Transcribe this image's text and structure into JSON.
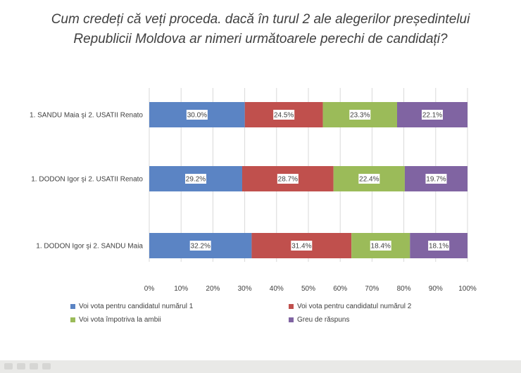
{
  "title_lines": [
    "Cum credeți că veți proceda. dacă în turul 2 ale alegerilor președintelui",
    "Republicii Moldova ar nimeri următoarele perechi de candidați?"
  ],
  "colors": {
    "series": [
      "#5b84c4",
      "#c0504d",
      "#9bbb59",
      "#8064a2"
    ],
    "text": "#404040",
    "grid": "#d9d9d9"
  },
  "chart_data": {
    "type": "bar",
    "orientation": "horizontal",
    "stacked": "percent",
    "categories": [
      "1. SANDU Maia şi 2. USATII Renato",
      "1. DODON Igor şi 2. USATII Renato",
      "1. DODON Igor şi 2. SANDU Maia"
    ],
    "series": [
      {
        "name": "Voi vota pentru candidatul numărul  1",
        "values": [
          30.0,
          29.2,
          32.2
        ]
      },
      {
        "name": "Voi vota pentru candidatul numărul  2",
        "values": [
          24.5,
          28.7,
          31.4
        ]
      },
      {
        "name": "Voi vota împotriva la ambii",
        "values": [
          23.3,
          22.4,
          18.4
        ]
      },
      {
        "name": "Greu de răspuns",
        "values": [
          22.1,
          19.7,
          18.1
        ]
      }
    ],
    "data_labels": [
      [
        "30.0%",
        "24.5%",
        "23.3%",
        "22.1%"
      ],
      [
        "29.2%",
        "28.7%",
        "22.4%",
        "19.7%"
      ],
      [
        "32.2%",
        "31.4%",
        "18.4%",
        "18.1%"
      ]
    ],
    "x_ticks": [
      "0%",
      "10%",
      "20%",
      "30%",
      "40%",
      "50%",
      "60%",
      "70%",
      "80%",
      "90%",
      "100%"
    ],
    "xlim": [
      0,
      100
    ],
    "grid": true,
    "legend_position": "bottom"
  }
}
